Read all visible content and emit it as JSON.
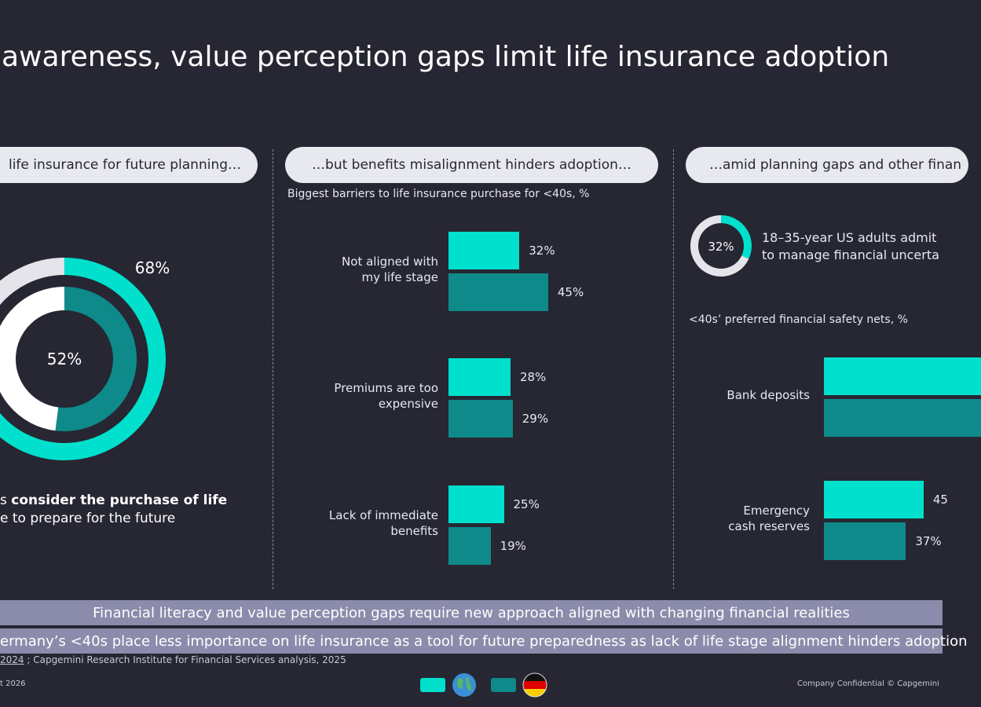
{
  "title": "awareness, value perception gaps limit life insurance adoption",
  "colors": {
    "background": "#262733",
    "global": "#00e0cc",
    "germany": "#0e8a8a",
    "pill": "#e8e8ef",
    "banner": "#8b8cab"
  },
  "panel1": {
    "heading": "life insurance for future planning…",
    "outer_value": "68%",
    "inner_value": "52%",
    "outer_pct": 68,
    "inner_pct": 52,
    "caption_prefix": "s ",
    "caption_bold": "consider the purchase of life",
    "caption_line2": "e to prepare for the future"
  },
  "panel2": {
    "heading": "…but benefits  misalignment hinders adoption…",
    "subtitle": "Biggest barriers to life insurance purchase for <40s, %",
    "items": [
      {
        "label1": "Not aligned with",
        "label2": "my life stage",
        "global": 32,
        "germany": 45,
        "global_label": "32%",
        "germany_label": "45%"
      },
      {
        "label1": "Premiums are too",
        "label2": "expensive",
        "global": 28,
        "germany": 29,
        "global_label": "28%",
        "germany_label": "29%"
      },
      {
        "label1": "Lack of immediate",
        "label2": "benefits",
        "global": 25,
        "germany": 19,
        "global_label": "25%",
        "germany_label": "19%"
      }
    ]
  },
  "panel3": {
    "heading": "…amid planning gaps and other finan",
    "donut_value": "32%",
    "donut_pct": 32,
    "stat_line1": "18–35-year US adults admit",
    "stat_line2": "to manage financial uncerta",
    "subtitle": "<40s’ preferred financial safety nets, %",
    "items": [
      {
        "label1": "Bank deposits",
        "label2": ""
      },
      {
        "label1": "Emergency",
        "label2": "cash reserves",
        "global": 45,
        "germany": 37,
        "global_label": "45",
        "germany_label": "37%"
      }
    ]
  },
  "banner1": "Financial literacy and value perception gaps require new approach aligned with changing financial realities",
  "banner2": "ermany’s <40s place less importance on life insurance as a tool for future preparedness as lack of life stage alignment hinders adoption",
  "source_link": "2024",
  "source_rest": " ; Capgemini Research Institute for Financial Services analysis, 2025",
  "footer_left": "t 2026",
  "footer_right": "Company Confidential © Capgemini",
  "legend": [
    {
      "icon": "globe-icon"
    },
    {
      "icon": "germany-flag-icon"
    }
  ]
}
